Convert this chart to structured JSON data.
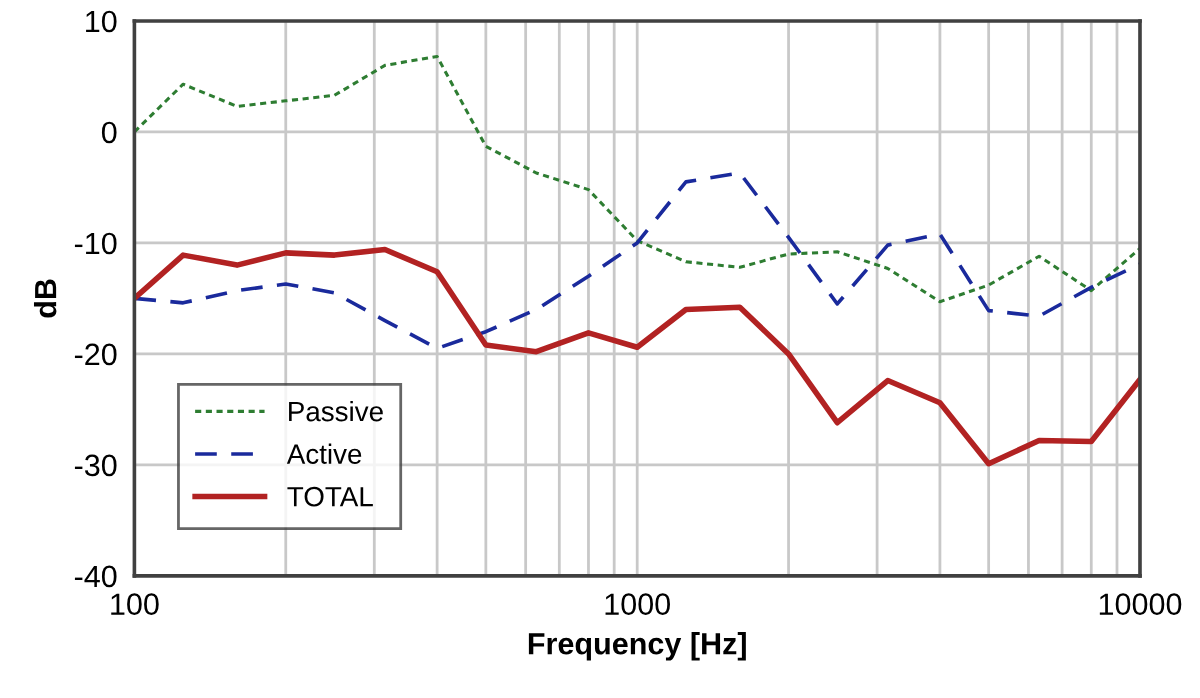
{
  "chart_data": {
    "type": "line",
    "xlabel": "Frequency [Hz]",
    "ylabel": "dB",
    "log": "x",
    "x": [
      100,
      125,
      160,
      200,
      250,
      315,
      400,
      500,
      630,
      800,
      1000,
      1250,
      1600,
      2000,
      2500,
      3150,
      4000,
      5000,
      6300,
      8000,
      10000
    ],
    "series": [
      {
        "name": "Passive",
        "color": "#2e7d32",
        "line_style": "dotted",
        "values": [
          0,
          4.3,
          2.3,
          2.8,
          3.3,
          6,
          6.8,
          -1.3,
          -3.7,
          -5.2,
          -9.8,
          -11.7,
          -12.2,
          -11,
          -10.8,
          -12.3,
          -15.3,
          -13.8,
          -11.2,
          -14.3,
          -10.5
        ]
      },
      {
        "name": "Active",
        "color": "#1a2a9c",
        "line_style": "dashed",
        "values": [
          -15,
          -15.4,
          -14.3,
          -13.7,
          -14.5,
          -17,
          -19.5,
          -18,
          -16,
          -13,
          -10,
          -4.5,
          -3.7,
          -9.5,
          -15.5,
          -10.2,
          -9.2,
          -16.1,
          -16.6,
          -14,
          -11.9
        ]
      },
      {
        "name": "TOTAL",
        "color": "#b22222",
        "line_style": "solid",
        "values": [
          -15,
          -11.1,
          -12,
          -10.9,
          -11.1,
          -10.6,
          -12.6,
          -19.2,
          -19.8,
          -18.1,
          -19.4,
          -16,
          -15.8,
          -20,
          -26.2,
          -22.4,
          -24.4,
          -29.9,
          -27.8,
          -27.9,
          -22.3
        ]
      }
    ],
    "xlim": [
      100,
      10000
    ],
    "ylim": [
      -40,
      10
    ],
    "xticks": [
      100,
      {
        "value": 200,
        "label": null
      },
      {
        "value": 300,
        "label": null
      },
      {
        "value": 400,
        "label": null
      },
      {
        "value": 500,
        "label": null
      },
      {
        "value": 600,
        "label": null
      },
      {
        "value": 700,
        "label": null
      },
      {
        "value": 800,
        "label": null
      },
      {
        "value": 900,
        "label": null
      },
      1000,
      {
        "value": 2000,
        "label": null
      },
      {
        "value": 3000,
        "label": null
      },
      {
        "value": 4000,
        "label": null
      },
      {
        "value": 5000,
        "label": null
      },
      {
        "value": 6000,
        "label": null
      },
      {
        "value": 7000,
        "label": null
      },
      {
        "value": 8000,
        "label": null
      },
      {
        "value": 9000,
        "label": null
      },
      10000
    ],
    "yticks": [
      -40,
      -30,
      -20,
      -10,
      0,
      10
    ],
    "grid": true,
    "legend": "bottom left",
    "marker": "none"
  }
}
